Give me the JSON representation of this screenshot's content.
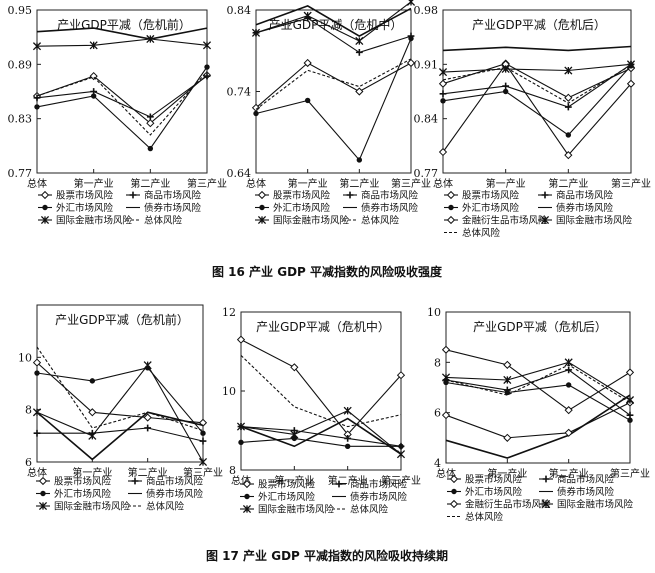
{
  "figures": [
    {
      "caption": "图 16   产业 GDP 平减指数的风险吸收强度",
      "panels": [
        {
          "chart_data": {
            "type": "line",
            "title": "产业GDP平减（危机前）",
            "categories": [
              "总体",
              "第一产业",
              "第二产业",
              "第三产业"
            ],
            "ylim": [
              0.77,
              0.95
            ],
            "yticks": [
              "0.77",
              "0.83",
              "0.89",
              "0.95"
            ],
            "series": [
              {
                "name": "股票市场风险",
                "marker": "diamond",
                "values": [
                  0.855,
                  0.877,
                  0.825,
                  0.878
                ]
              },
              {
                "name": "商品市场风险",
                "marker": "plus",
                "values": [
                  0.853,
                  0.86,
                  0.832,
                  0.877
                ]
              },
              {
                "name": "外汇市场风险",
                "marker": "dot",
                "values": [
                  0.843,
                  0.855,
                  0.797,
                  0.887
                ]
              },
              {
                "name": "债券市场风险",
                "marker": "none",
                "values": [
                  0.926,
                  0.93,
                  0.918,
                  0.93
                ]
              },
              {
                "name": "国际金融市场风险",
                "marker": "star",
                "values": [
                  0.91,
                  0.911,
                  0.918,
                  0.911
                ]
              },
              {
                "name": "总体风险",
                "marker": "none",
                "dash": true,
                "values": [
                  0.855,
                  0.876,
                  0.812,
                  0.882
                ]
              }
            ]
          }
        },
        {
          "chart_data": {
            "type": "line",
            "title": "产业GDP平减（危机中）",
            "categories": [
              "总体",
              "第一产业",
              "第二产业",
              "第三产业"
            ],
            "ylim": [
              0.64,
              0.84
            ],
            "yticks": [
              "0.64",
              "0.74",
              "0.84"
            ],
            "series": [
              {
                "name": "股票市场风险",
                "marker": "diamond",
                "values": [
                  0.72,
                  0.775,
                  0.74,
                  0.775
                ]
              },
              {
                "name": "商品市场风险",
                "marker": "plus",
                "values": [
                  0.812,
                  0.83,
                  0.788,
                  0.808
                ]
              },
              {
                "name": "外汇市场风险",
                "marker": "dot",
                "values": [
                  0.713,
                  0.729,
                  0.656,
                  0.805
                ]
              },
              {
                "name": "债券市场风险",
                "marker": "none",
                "values": [
                  0.822,
                  0.845,
                  0.808,
                  0.842
                ]
              },
              {
                "name": "国际金融市场风险",
                "marker": "star",
                "values": [
                  0.812,
                  0.833,
                  0.802,
                  0.85
                ]
              },
              {
                "name": "总体风险",
                "marker": "none",
                "dash": true,
                "values": [
                  0.718,
                  0.766,
                  0.746,
                  0.78
                ]
              }
            ]
          }
        },
        {
          "chart_data": {
            "type": "line",
            "title": "产业GDP平减（危机后）",
            "categories": [
              "总体",
              "第一产业",
              "第二产业",
              "第三产业"
            ],
            "ylim": [
              0.77,
              0.98
            ],
            "yticks": [
              "0.77",
              "0.84",
              "0.91",
              "0.98"
            ],
            "series": [
              {
                "name": "股票市场风险",
                "marker": "diamond",
                "values": [
                  0.885,
                  0.911,
                  0.867,
                  0.905
                ]
              },
              {
                "name": "商品市场风险",
                "marker": "plus",
                "values": [
                  0.872,
                  0.882,
                  0.855,
                  0.91
                ]
              },
              {
                "name": "外汇市场风险",
                "marker": "dot",
                "values": [
                  0.863,
                  0.875,
                  0.819,
                  0.908
                ]
              },
              {
                "name": "债券市场风险",
                "marker": "none",
                "values": [
                  0.928,
                  0.932,
                  0.928,
                  0.933
                ]
              },
              {
                "name": "金融衍生品市场风险",
                "marker": "diamond",
                "values": [
                  0.797,
                  0.91,
                  0.793,
                  0.885
                ]
              },
              {
                "name": "国际金融市场风险",
                "marker": "star",
                "values": [
                  0.9,
                  0.904,
                  0.902,
                  0.91
                ]
              },
              {
                "name": "总体风险",
                "marker": "none",
                "dash": true,
                "values": [
                  0.89,
                  0.906,
                  0.86,
                  0.909
                ]
              }
            ]
          }
        }
      ]
    },
    {
      "caption": "图 17   产业 GDP 平减指数的风险吸收持续期",
      "panels": [
        {
          "chart_data": {
            "type": "line",
            "title": "产业GDP平减（危机前）",
            "categories": [
              "总体",
              "第一产业",
              "第二产业",
              "第三产业"
            ],
            "ylim": [
              6,
              12
            ],
            "yticks": [
              "6",
              "8",
              "10"
            ],
            "series": [
              {
                "name": "股票市场风险",
                "marker": "diamond",
                "values": [
                  9.8,
                  7.9,
                  7.7,
                  7.5
                ]
              },
              {
                "name": "商品市场风险",
                "marker": "plus",
                "values": [
                  7.1,
                  7.1,
                  7.3,
                  6.8
                ]
              },
              {
                "name": "外汇市场风险",
                "marker": "dot",
                "values": [
                  9.4,
                  9.1,
                  9.6,
                  7.1
                ]
              },
              {
                "name": "债券市场风险",
                "marker": "none",
                "values": [
                  7.9,
                  6.1,
                  7.9,
                  7.4
                ]
              },
              {
                "name": "国际金融市场风险",
                "marker": "star",
                "values": [
                  7.9,
                  7.0,
                  9.7,
                  6.0
                ]
              },
              {
                "name": "总体风险",
                "marker": "none",
                "dash": true,
                "values": [
                  10.4,
                  7.3,
                  7.9,
                  7.2
                ]
              }
            ]
          }
        },
        {
          "chart_data": {
            "type": "line",
            "title": "产业GDP平减（危机中）",
            "categories": [
              "总体",
              "第一产业",
              "第二产业",
              "第三产业"
            ],
            "ylim": [
              8,
              12
            ],
            "yticks": [
              "8",
              "10",
              "12"
            ],
            "series": [
              {
                "name": "股票市场风险",
                "marker": "diamond",
                "values": [
                  11.3,
                  10.6,
                  8.9,
                  10.4
                ]
              },
              {
                "name": "商品市场风险",
                "marker": "plus",
                "values": [
                  9.1,
                  9.0,
                  8.8,
                  8.6
                ]
              },
              {
                "name": "外汇市场风险",
                "marker": "dot",
                "values": [
                  8.7,
                  8.8,
                  8.6,
                  8.6
                ]
              },
              {
                "name": "债券市场风险",
                "marker": "none",
                "values": [
                  9.1,
                  8.6,
                  9.3,
                  8.4
                ]
              },
              {
                "name": "国际金融市场风险",
                "marker": "star",
                "values": [
                  9.1,
                  8.9,
                  9.5,
                  8.4
                ]
              },
              {
                "name": "总体风险",
                "marker": "none",
                "dash": true,
                "values": [
                  10.9,
                  9.6,
                  9.1,
                  9.4
                ]
              }
            ]
          }
        },
        {
          "chart_data": {
            "type": "line",
            "title": "产业GDP平减（危机后）",
            "categories": [
              "总体",
              "第一产业",
              "第二产业",
              "第三产业"
            ],
            "ylim": [
              4,
              10
            ],
            "yticks": [
              "4",
              "6",
              "8",
              "10"
            ],
            "series": [
              {
                "name": "股票市场风险",
                "marker": "diamond",
                "values": [
                  8.5,
                  7.9,
                  6.1,
                  7.6
                ]
              },
              {
                "name": "商品市场风险",
                "marker": "plus",
                "values": [
                  7.3,
                  6.9,
                  7.7,
                  5.9
                ]
              },
              {
                "name": "外汇市场风险",
                "marker": "dot",
                "values": [
                  7.2,
                  6.8,
                  7.1,
                  5.7
                ]
              },
              {
                "name": "债券市场风险",
                "marker": "none",
                "values": [
                  4.9,
                  4.2,
                  5.1,
                  6.7
                ]
              },
              {
                "name": "金融衍生品市场风险",
                "marker": "diamond",
                "values": [
                  5.9,
                  5.0,
                  5.2,
                  6.4
                ]
              },
              {
                "name": "国际金融市场风险",
                "marker": "star",
                "values": [
                  7.4,
                  7.3,
                  8.0,
                  6.5
                ]
              },
              {
                "name": "总体风险",
                "marker": "none",
                "dash": true,
                "values": [
                  7.3,
                  6.7,
                  7.9,
                  6.4
                ]
              }
            ]
          }
        }
      ]
    }
  ]
}
